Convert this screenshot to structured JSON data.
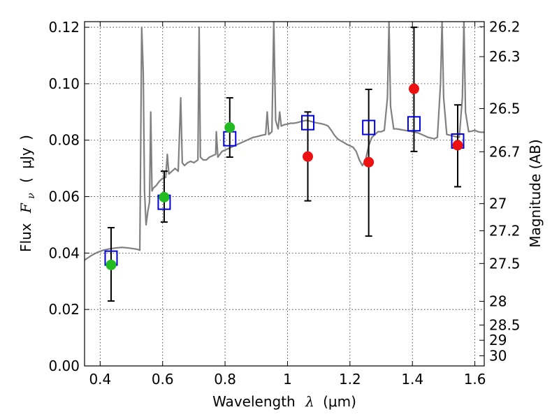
{
  "chart_data": {
    "type": "scatter",
    "xlabel": "Wavelength",
    "xlabel_symbol": "λ",
    "xlabel_unit": "(μm)",
    "ylabel": "Flux",
    "ylabel_symbol": "F",
    "ylabel_subscript": "ν",
    "ylabel_open": "(",
    "ylabel_unit": "μJy",
    "ylabel_close": ")",
    "y2label": "Magnitude (AB)",
    "xlim": [
      0.35,
      1.63
    ],
    "ylim": [
      0.0,
      0.122
    ],
    "grid": true,
    "x_ticks": [
      {
        "value": 0.4,
        "label": "0.4"
      },
      {
        "value": 0.6,
        "label": "0.6"
      },
      {
        "value": 0.8,
        "label": "0.8"
      },
      {
        "value": 1.0,
        "label": "1"
      },
      {
        "value": 1.2,
        "label": "1.2"
      },
      {
        "value": 1.4,
        "label": "1.4"
      },
      {
        "value": 1.6,
        "label": "1.6"
      }
    ],
    "y_ticks": [
      {
        "value": 0.0,
        "label": "0.00"
      },
      {
        "value": 0.02,
        "label": "0.02"
      },
      {
        "value": 0.04,
        "label": "0.04"
      },
      {
        "value": 0.06,
        "label": "0.06"
      },
      {
        "value": 0.08,
        "label": "0.08"
      },
      {
        "value": 0.1,
        "label": "0.10"
      },
      {
        "value": 0.12,
        "label": "0.12"
      }
    ],
    "y2_ticks": [
      {
        "label": "26.2",
        "flux": 0.1202
      },
      {
        "label": "26.3",
        "flux": 0.1096
      },
      {
        "label": "26.5",
        "flux": 0.0912
      },
      {
        "label": "26.7",
        "flux": 0.0759
      },
      {
        "label": "27",
        "flux": 0.0575
      },
      {
        "label": "27.2",
        "flux": 0.0479
      },
      {
        "label": "27.5",
        "flux": 0.0363
      },
      {
        "label": "28",
        "flux": 0.0229
      },
      {
        "label": "28.5",
        "flux": 0.0145
      },
      {
        "label": "29",
        "flux": 0.0091
      },
      {
        "label": "30",
        "flux": 0.0036
      }
    ],
    "series": [
      {
        "style": "model-spectrum",
        "color": "#808080",
        "points": [
          [
            0.35,
            0.0375
          ],
          [
            0.37,
            0.039
          ],
          [
            0.39,
            0.0402
          ],
          [
            0.41,
            0.041
          ],
          [
            0.43,
            0.0415
          ],
          [
            0.45,
            0.0418
          ],
          [
            0.47,
            0.042
          ],
          [
            0.49,
            0.0418
          ],
          [
            0.51,
            0.0415
          ],
          [
            0.52,
            0.0413
          ],
          [
            0.527,
            0.041
          ],
          [
            0.533,
            0.12
          ],
          [
            0.538,
            0.104
          ],
          [
            0.542,
            0.062
          ],
          [
            0.547,
            0.05
          ],
          [
            0.553,
            0.055
          ],
          [
            0.558,
            0.058
          ],
          [
            0.562,
            0.09
          ],
          [
            0.566,
            0.062
          ],
          [
            0.57,
            0.063
          ],
          [
            0.58,
            0.064
          ],
          [
            0.59,
            0.0655
          ],
          [
            0.6,
            0.0665
          ],
          [
            0.61,
            0.0668
          ],
          [
            0.615,
            0.075
          ],
          [
            0.62,
            0.068
          ],
          [
            0.63,
            0.069
          ],
          [
            0.64,
            0.07
          ],
          [
            0.65,
            0.069
          ],
          [
            0.658,
            0.095
          ],
          [
            0.663,
            0.072
          ],
          [
            0.67,
            0.071
          ],
          [
            0.68,
            0.072
          ],
          [
            0.69,
            0.0725
          ],
          [
            0.7,
            0.072
          ],
          [
            0.713,
            0.073
          ],
          [
            0.717,
            0.12
          ],
          [
            0.721,
            0.074
          ],
          [
            0.73,
            0.073
          ],
          [
            0.74,
            0.073
          ],
          [
            0.75,
            0.074
          ],
          [
            0.76,
            0.0745
          ],
          [
            0.77,
            0.075
          ],
          [
            0.772,
            0.083
          ],
          [
            0.777,
            0.074
          ],
          [
            0.79,
            0.076
          ],
          [
            0.8,
            0.0765
          ],
          [
            0.81,
            0.077
          ],
          [
            0.82,
            0.0775
          ],
          [
            0.83,
            0.078
          ],
          [
            0.84,
            0.0785
          ],
          [
            0.85,
            0.079
          ],
          [
            0.86,
            0.0795
          ],
          [
            0.87,
            0.08
          ],
          [
            0.88,
            0.0805
          ],
          [
            0.89,
            0.081
          ],
          [
            0.9,
            0.0812
          ],
          [
            0.91,
            0.0815
          ],
          [
            0.92,
            0.0818
          ],
          [
            0.93,
            0.082
          ],
          [
            0.935,
            0.09
          ],
          [
            0.94,
            0.082
          ],
          [
            0.95,
            0.083
          ],
          [
            0.956,
            0.122
          ],
          [
            0.962,
            0.087
          ],
          [
            0.97,
            0.084
          ],
          [
            0.975,
            0.09
          ],
          [
            0.98,
            0.085
          ],
          [
            0.99,
            0.0855
          ],
          [
            1.0,
            0.0857
          ],
          [
            1.01,
            0.086
          ],
          [
            1.02,
            0.086
          ],
          [
            1.03,
            0.0862
          ],
          [
            1.04,
            0.0865
          ],
          [
            1.05,
            0.0868
          ],
          [
            1.06,
            0.087
          ],
          [
            1.07,
            0.0868
          ],
          [
            1.08,
            0.0865
          ],
          [
            1.09,
            0.0862
          ],
          [
            1.1,
            0.086
          ],
          [
            1.11,
            0.0858
          ],
          [
            1.12,
            0.0855
          ],
          [
            1.13,
            0.085
          ],
          [
            1.14,
            0.0835
          ],
          [
            1.15,
            0.0818
          ],
          [
            1.16,
            0.0805
          ],
          [
            1.17,
            0.0798
          ],
          [
            1.18,
            0.0792
          ],
          [
            1.19,
            0.0785
          ],
          [
            1.2,
            0.078
          ],
          [
            1.21,
            0.0775
          ],
          [
            1.22,
            0.076
          ],
          [
            1.23,
            0.073
          ],
          [
            1.24,
            0.071
          ],
          [
            1.25,
            0.073
          ],
          [
            1.26,
            0.078
          ],
          [
            1.27,
            0.081
          ],
          [
            1.28,
            0.082
          ],
          [
            1.29,
            0.083
          ],
          [
            1.3,
            0.083
          ],
          [
            1.31,
            0.0835
          ],
          [
            1.32,
            0.095
          ],
          [
            1.325,
            0.122
          ],
          [
            1.33,
            0.092
          ],
          [
            1.34,
            0.084
          ],
          [
            1.35,
            0.084
          ],
          [
            1.36,
            0.0838
          ],
          [
            1.37,
            0.0836
          ],
          [
            1.38,
            0.0834
          ],
          [
            1.39,
            0.0832
          ],
          [
            1.4,
            0.083
          ],
          [
            1.41,
            0.0828
          ],
          [
            1.42,
            0.0825
          ],
          [
            1.43,
            0.082
          ],
          [
            1.45,
            0.081
          ],
          [
            1.47,
            0.0805
          ],
          [
            1.48,
            0.081
          ],
          [
            1.49,
            0.1
          ],
          [
            1.495,
            0.122
          ],
          [
            1.5,
            0.095
          ],
          [
            1.51,
            0.082
          ],
          [
            1.52,
            0.0818
          ],
          [
            1.53,
            0.0815
          ],
          [
            1.54,
            0.0812
          ],
          [
            1.55,
            0.081
          ],
          [
            1.56,
            0.095
          ],
          [
            1.565,
            0.122
          ],
          [
            1.57,
            0.09
          ],
          [
            1.58,
            0.083
          ],
          [
            1.59,
            0.0832
          ],
          [
            1.6,
            0.0835
          ],
          [
            1.61,
            0.083
          ],
          [
            1.62,
            0.0828
          ],
          [
            1.63,
            0.0828
          ]
        ]
      },
      {
        "style": "model-photometry",
        "marker": "open-square",
        "color": "#0000dd",
        "x": [
          0.435,
          0.605,
          0.815,
          1.065,
          1.26,
          1.405,
          1.545
        ],
        "y": [
          0.0382,
          0.058,
          0.0805,
          0.0862,
          0.0845,
          0.0858,
          0.0797
        ]
      },
      {
        "style": "observed-detections",
        "marker": "filled-circle",
        "color": "#22bb22",
        "x": [
          0.435,
          0.605,
          0.815
        ],
        "y": [
          0.0358,
          0.0598,
          0.0845
        ],
        "yerr_low": [
          0.023,
          0.051,
          0.074
        ],
        "yerr_high": [
          0.049,
          0.069,
          0.095
        ]
      },
      {
        "style": "observed-nondetections",
        "marker": "filled-circle",
        "color": "#ee1111",
        "x": [
          1.065,
          1.26,
          1.405,
          1.545
        ],
        "y": [
          0.0742,
          0.0722,
          0.0982,
          0.0782
        ],
        "yerr_low": [
          0.0585,
          0.046,
          0.076,
          0.0635
        ],
        "yerr_high": [
          0.09,
          0.098,
          0.12,
          0.0925
        ]
      }
    ]
  }
}
